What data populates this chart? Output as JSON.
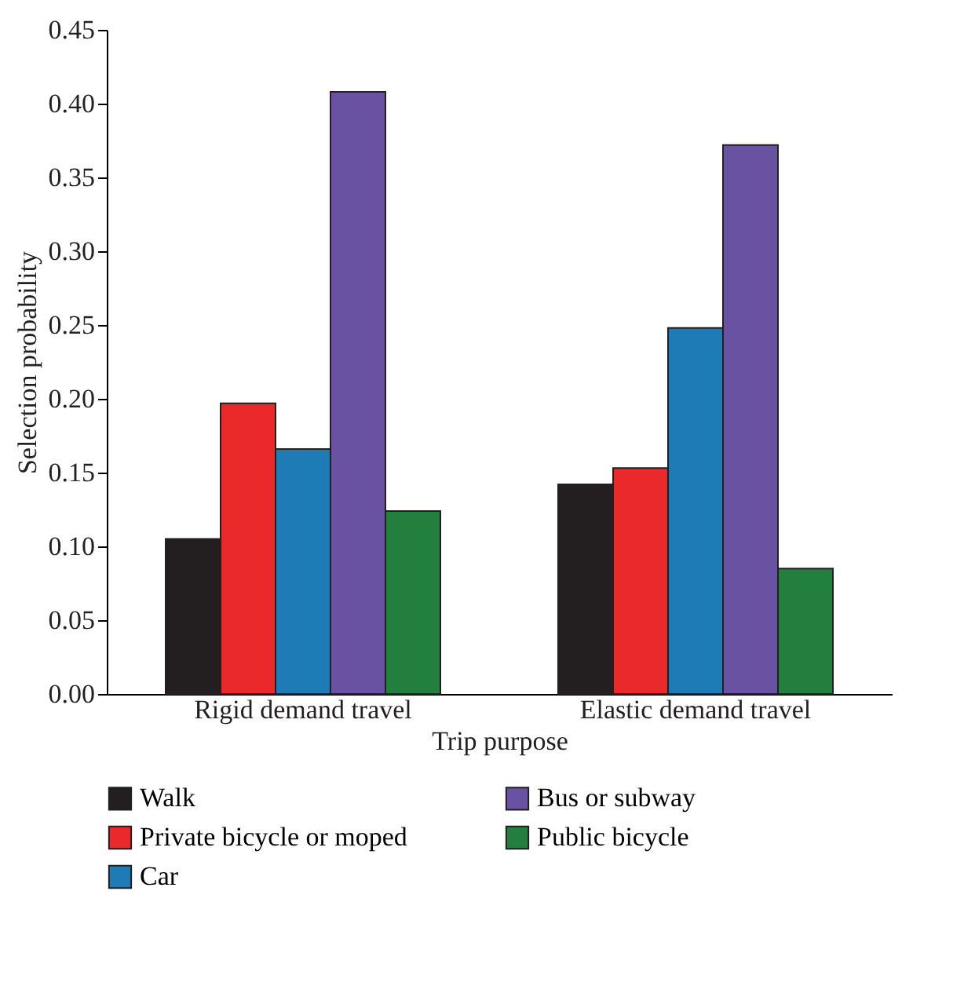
{
  "chart_data": {
    "type": "bar",
    "xlabel": "Trip purpose",
    "ylabel": "Selection probability",
    "categories": [
      "Rigid demand travel",
      "Elastic demand travel"
    ],
    "series": [
      {
        "name": "Walk",
        "color": "#231f20",
        "values": [
          0.105,
          0.142
        ]
      },
      {
        "name": "Private bicycle or moped",
        "color": "#ea2a2a",
        "values": [
          0.197,
          0.153
        ]
      },
      {
        "name": "Car",
        "color": "#1f7bb6",
        "values": [
          0.166,
          0.248
        ]
      },
      {
        "name": "Bus or subway",
        "color": "#6952a1",
        "values": [
          0.408,
          0.372
        ]
      },
      {
        "name": "Public bicycle",
        "color": "#237f3e",
        "values": [
          0.124,
          0.085
        ]
      }
    ],
    "ylim": [
      0,
      0.45
    ],
    "yticks": [
      {
        "value": 0,
        "label": "0.00"
      },
      0.05,
      {
        "value": 0.1,
        "label": "0.10"
      },
      0.15,
      {
        "value": 0.2,
        "label": "0.20"
      },
      0.25,
      {
        "value": 0.3,
        "label": "0.30"
      },
      0.35,
      {
        "value": 0.4,
        "label": "0.40"
      },
      0.45
    ],
    "grid": false,
    "legend": "bottom"
  }
}
